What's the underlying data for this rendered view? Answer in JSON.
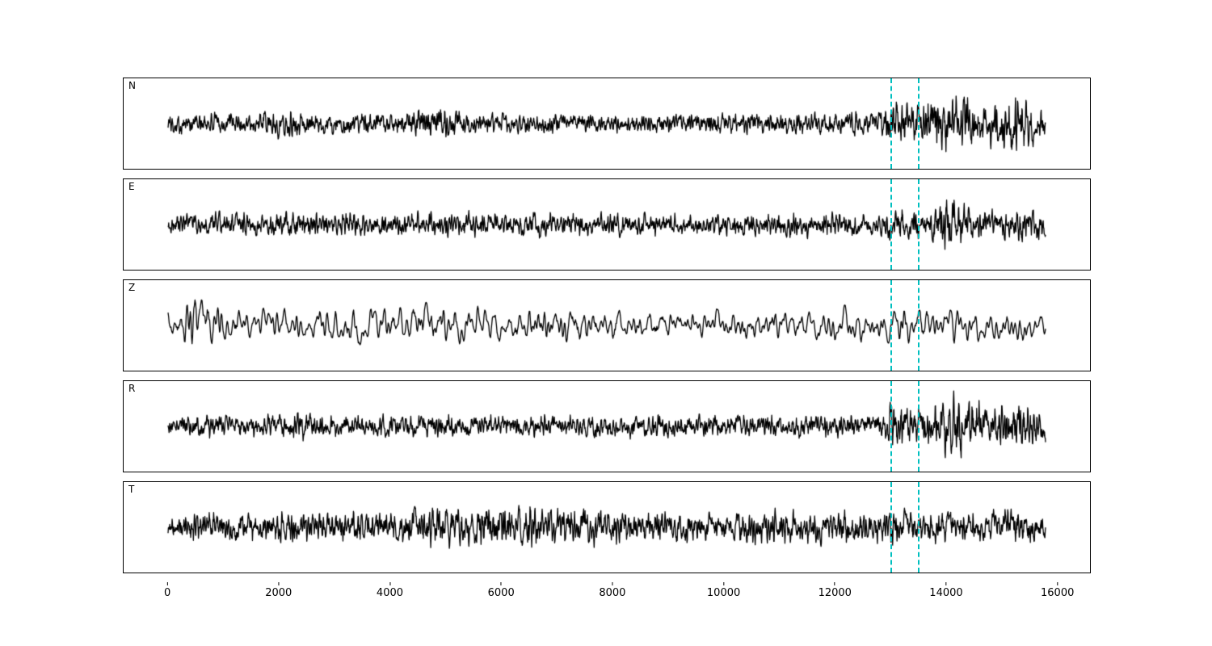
{
  "figure": {
    "background": "#ffffff",
    "trace_color": "#000000",
    "axis_color": "#000000"
  },
  "chart_data": {
    "type": "line",
    "title": "",
    "xlabel": "",
    "ylabel": "",
    "description": "Five-component seismogram waveform traces (N, E, Z, R, T) sharing a common sample-index x-axis, with two dashed cyan event-window marker lines.",
    "x_ticks": [
      0,
      2000,
      4000,
      6000,
      8000,
      10000,
      12000,
      14000,
      16000
    ],
    "xlim": [
      -800,
      16600
    ],
    "x_data_range": [
      0,
      15800
    ],
    "grid": false,
    "legend": "none",
    "event_lines": {
      "color": "#00bfbf",
      "style": "dashed",
      "x_positions": [
        13000,
        13500
      ]
    },
    "panels": [
      {
        "label": "N",
        "seed": 101,
        "points": 2600,
        "smooth": 1,
        "envelope": [
          [
            0,
            0.28
          ],
          [
            1500,
            0.3
          ],
          [
            2100,
            0.42
          ],
          [
            2500,
            0.3
          ],
          [
            4200,
            0.32
          ],
          [
            5100,
            0.5
          ],
          [
            5300,
            0.3
          ],
          [
            8000,
            0.26
          ],
          [
            10500,
            0.3
          ],
          [
            12800,
            0.3
          ],
          [
            13050,
            0.7
          ],
          [
            13400,
            0.45
          ],
          [
            13800,
            0.75
          ],
          [
            14300,
            0.65
          ],
          [
            14800,
            0.6
          ],
          [
            15250,
            0.95
          ],
          [
            15550,
            0.55
          ],
          [
            15800,
            0.45
          ]
        ]
      },
      {
        "label": "E",
        "seed": 202,
        "points": 2600,
        "smooth": 1,
        "envelope": [
          [
            0,
            0.3
          ],
          [
            2000,
            0.34
          ],
          [
            4000,
            0.32
          ],
          [
            6500,
            0.34
          ],
          [
            9000,
            0.3
          ],
          [
            11000,
            0.34
          ],
          [
            12800,
            0.36
          ],
          [
            13100,
            0.5
          ],
          [
            13600,
            0.4
          ],
          [
            14100,
            0.9
          ],
          [
            14400,
            0.5
          ],
          [
            15000,
            0.4
          ],
          [
            15500,
            0.45
          ],
          [
            15800,
            0.35
          ]
        ]
      },
      {
        "label": "Z",
        "seed": 303,
        "points": 1500,
        "smooth": 2,
        "envelope": [
          [
            0,
            0.4
          ],
          [
            400,
            0.85
          ],
          [
            700,
            0.95
          ],
          [
            1000,
            0.55
          ],
          [
            1500,
            0.45
          ],
          [
            3000,
            0.5
          ],
          [
            5200,
            0.6
          ],
          [
            6500,
            0.55
          ],
          [
            8000,
            0.5
          ],
          [
            10000,
            0.45
          ],
          [
            11500,
            0.5
          ],
          [
            13000,
            0.45
          ],
          [
            13600,
            0.6
          ],
          [
            14000,
            0.5
          ],
          [
            15000,
            0.45
          ],
          [
            15800,
            0.4
          ]
        ]
      },
      {
        "label": "R",
        "seed": 404,
        "points": 2600,
        "smooth": 1,
        "envelope": [
          [
            0,
            0.28
          ],
          [
            1500,
            0.3
          ],
          [
            2300,
            0.42
          ],
          [
            2600,
            0.3
          ],
          [
            5000,
            0.3
          ],
          [
            6000,
            0.28
          ],
          [
            8500,
            0.3
          ],
          [
            11000,
            0.32
          ],
          [
            12800,
            0.3
          ],
          [
            13050,
            0.72
          ],
          [
            13450,
            0.5
          ],
          [
            14200,
            0.95
          ],
          [
            14700,
            0.6
          ],
          [
            15300,
            0.7
          ],
          [
            15800,
            0.4
          ]
        ]
      },
      {
        "label": "T",
        "seed": 505,
        "points": 2600,
        "smooth": 1,
        "envelope": [
          [
            0,
            0.35
          ],
          [
            1200,
            0.45
          ],
          [
            2500,
            0.42
          ],
          [
            4000,
            0.45
          ],
          [
            5200,
            0.6
          ],
          [
            6300,
            0.55
          ],
          [
            8000,
            0.45
          ],
          [
            9500,
            0.42
          ],
          [
            11000,
            0.48
          ],
          [
            12500,
            0.45
          ],
          [
            13500,
            0.5
          ],
          [
            14500,
            0.45
          ],
          [
            15300,
            0.5
          ],
          [
            15800,
            0.38
          ]
        ]
      }
    ]
  }
}
